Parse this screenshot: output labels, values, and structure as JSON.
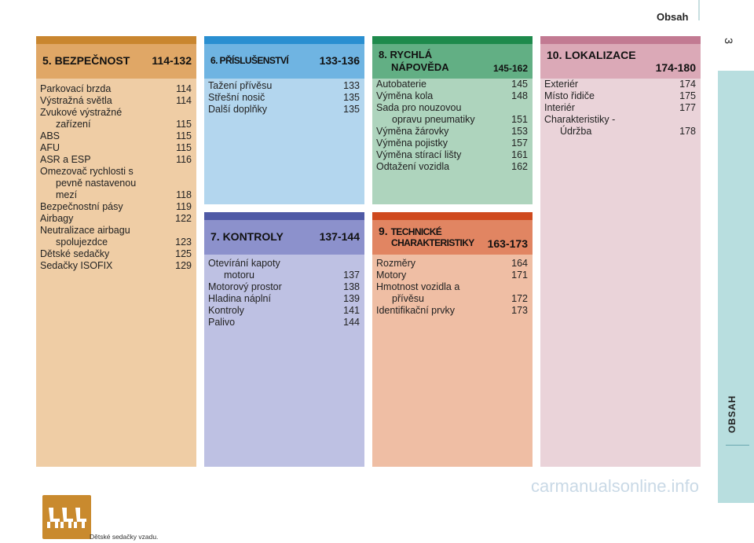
{
  "header": {
    "title": "Obsah",
    "page_number": "3",
    "side_tab": "OBSAH"
  },
  "sections": [
    {
      "title": "5. BEZPEČNOST",
      "range": "114-132",
      "colors": {
        "stripe": "#c9862f",
        "head": "#e0a766",
        "body": "#efcda5"
      },
      "items": [
        {
          "lines": [
            "Parkovací brzda"
          ],
          "page": "114"
        },
        {
          "lines": [
            "Výstražná světla"
          ],
          "page": "114"
        },
        {
          "lines": [
            "Zvukové výstražné",
            "zařízení"
          ],
          "page": "115"
        },
        {
          "lines": [
            "ABS"
          ],
          "page": "115"
        },
        {
          "lines": [
            "AFU"
          ],
          "page": "115"
        },
        {
          "lines": [
            "ASR a ESP"
          ],
          "page": "116"
        },
        {
          "lines": [
            "Omezovač rychlosti s",
            "pevně nastavenou",
            "mezí"
          ],
          "page": "118"
        },
        {
          "lines": [
            "Bezpečnostní pásy"
          ],
          "page": "119"
        },
        {
          "lines": [
            "Airbagy"
          ],
          "page": "122"
        },
        {
          "lines": [
            "Neutralizace airbagu",
            "spolujezdce"
          ],
          "page": "123"
        },
        {
          "lines": [
            "Dětské sedačky"
          ],
          "page": "125"
        },
        {
          "lines": [
            "Sedačky ISOFIX"
          ],
          "page": "129"
        }
      ],
      "caption": "Dětské sedačky vzadu."
    },
    {
      "title": "6. PŘÍSLUŠENSTVÍ",
      "range": "133-136",
      "colors": {
        "stripe": "#2a8fd1",
        "head": "#6fb4e2",
        "body": "#b3d6ee"
      },
      "items": [
        {
          "lines": [
            "Tažení přívěsu"
          ],
          "page": "133"
        },
        {
          "lines": [
            "Střešní nosič"
          ],
          "page": "135"
        },
        {
          "lines": [
            "Další doplňky"
          ],
          "page": "135"
        }
      ]
    },
    {
      "title": "8. RYCHLÁ",
      "title2": "NÁPOVĚDA",
      "range": "145-162",
      "colors": {
        "stripe": "#1e8a4c",
        "head": "#62af84",
        "body": "#aed4bd"
      },
      "items": [
        {
          "lines": [
            "Autobaterie"
          ],
          "page": "145"
        },
        {
          "lines": [
            "Výměna kola"
          ],
          "page": "148"
        },
        {
          "lines": [
            "Sada pro nouzovou",
            "opravu pneumatiky"
          ],
          "page": "151"
        },
        {
          "lines": [
            "Výměna žárovky"
          ],
          "page": "153"
        },
        {
          "lines": [
            "Výměna pojistky"
          ],
          "page": "157"
        },
        {
          "lines": [
            "Výměna stírací lišty"
          ],
          "page": "161"
        },
        {
          "lines": [
            "Odtažení vozidla"
          ],
          "page": "162"
        }
      ]
    },
    {
      "title": "10. LOKALIZACE",
      "range": "174-180",
      "colors": {
        "stripe": "#c27a92",
        "head": "#dba9b7",
        "body": "#ead3d9"
      },
      "items": [
        {
          "lines": [
            "Exteriér"
          ],
          "page": "174"
        },
        {
          "lines": [
            "Místo řidiče"
          ],
          "page": "175"
        },
        {
          "lines": [
            "Interiér"
          ],
          "page": "177"
        },
        {
          "lines": [
            "Charakteristiky -",
            "Údržba"
          ],
          "page": "178"
        }
      ]
    },
    {
      "title": "7. KONTROLY",
      "range": "137-144",
      "colors": {
        "stripe": "#4f5aa6",
        "head": "#8c91cc",
        "body": "#bec1e3"
      },
      "items": [
        {
          "lines": [
            "Otevírání kapoty",
            "motoru"
          ],
          "page": "137"
        },
        {
          "lines": [
            "Motorový prostor"
          ],
          "page": "138"
        },
        {
          "lines": [
            "Hladina náplní"
          ],
          "page": "139"
        },
        {
          "lines": [
            "Kontroly"
          ],
          "page": "141"
        },
        {
          "lines": [
            "Palivo"
          ],
          "page": "144"
        }
      ]
    },
    {
      "title": "9. TECHNICKÉ",
      "title2": "CHARAKTERISTIKY",
      "range": "163-173",
      "colors": {
        "stripe": "#cf4a1e",
        "head": "#e18562",
        "body": "#efbea4"
      },
      "items": [
        {
          "lines": [
            "Rozměry"
          ],
          "page": "164"
        },
        {
          "lines": [
            "Motory"
          ],
          "page": "171"
        },
        {
          "lines": [
            "Hmotnost vozidla a",
            "přívěsu"
          ],
          "page": "172"
        },
        {
          "lines": [
            "Identifikační prvky"
          ],
          "page": "173"
        }
      ]
    }
  ],
  "watermark": "carmanualsonline.info"
}
